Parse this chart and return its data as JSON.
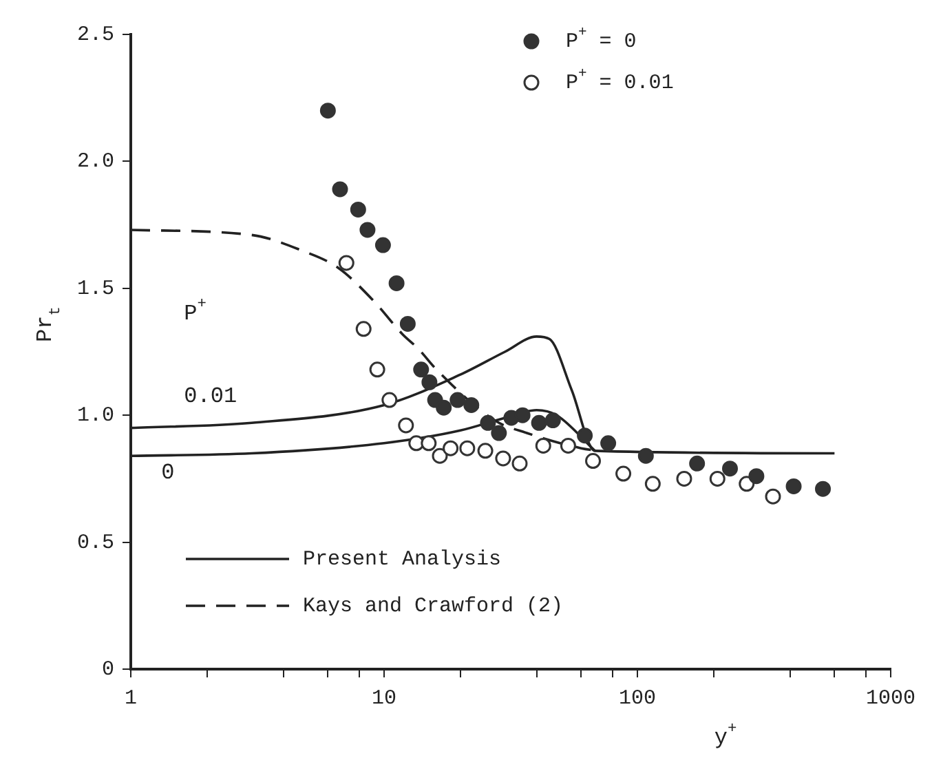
{
  "chart_data": {
    "type": "scatter",
    "xlabel": "y$^{+}$",
    "ylabel": "Pr$_{t}$",
    "log": "x",
    "legend": "top",
    "grid": false,
    "xlim": [
      1,
      1000
    ],
    "xticks": [
      1,
      {
        "value": 2,
        "label": null
      },
      {
        "value": 4,
        "label": null
      },
      {
        "value": 6,
        "label": null
      },
      {
        "value": 8,
        "label": null
      },
      10,
      {
        "value": 20,
        "label": null
      },
      {
        "value": 40,
        "label": null
      },
      {
        "value": 60,
        "label": null
      },
      {
        "value": 80,
        "label": null
      },
      100,
      {
        "value": 200,
        "label": null
      },
      {
        "value": 400,
        "label": null
      },
      {
        "value": 600,
        "label": null
      },
      {
        "value": 800,
        "label": null
      },
      1000
    ],
    "ylim": [
      0,
      2.5
    ],
    "yticks": [
      0,
      0.5,
      {
        "value": 1,
        "label": "1.0"
      },
      1.5,
      {
        "value": 2,
        "label": "2.0"
      },
      2.5
    ],
    "series": [
      {
        "name": "P$^{+}$ = 0",
        "marker": "circle",
        "color": "#333333",
        "x": [
          6.0,
          6.7,
          7.9,
          8.6,
          9.9,
          11.2,
          12.4,
          14.0,
          15.1,
          15.9,
          17.2,
          19.5,
          22.1,
          25.7,
          28.4,
          31.8,
          35.2,
          40.9,
          46.4,
          62,
          76.7,
          108,
          172,
          232,
          295,
          414,
          540
        ],
        "values": [
          2.2,
          1.89,
          1.81,
          1.73,
          1.67,
          1.52,
          1.36,
          1.18,
          1.13,
          1.06,
          1.03,
          1.06,
          1.04,
          0.97,
          0.93,
          0.99,
          1.0,
          0.97,
          0.98,
          0.92,
          0.89,
          0.84,
          0.81,
          0.79,
          0.76,
          0.72,
          0.71
        ]
      },
      {
        "name": "P$^{+}$ = 0.01",
        "marker": "circle",
        "color": "#ffffff",
        "x": [
          7.1,
          8.3,
          9.4,
          10.5,
          12.2,
          13.4,
          15.0,
          16.6,
          18.3,
          21.3,
          25.1,
          29.5,
          34.3,
          42.5,
          53.3,
          66.8,
          88,
          115,
          153,
          207,
          270,
          343
        ],
        "values": [
          1.6,
          1.34,
          1.18,
          1.06,
          0.96,
          0.89,
          0.89,
          0.84,
          0.87,
          0.87,
          0.86,
          0.83,
          0.81,
          0.88,
          0.88,
          0.82,
          0.77,
          0.73,
          0.75,
          0.75,
          0.73,
          0.68
        ]
      },
      {
        "name": "Present Analysis",
        "type": "line",
        "color": "#222222",
        "line_style": "solid",
        "x": [
          1,
          3,
          10,
          20,
          30,
          40,
          45,
          55,
          68,
          600
        ],
        "values": [
          0.95,
          0.97,
          1.04,
          1.16,
          1.25,
          1.31,
          1.3,
          1.1,
          0.86,
          0.85
        ]
      },
      {
        "type": "line",
        "color": "#222222",
        "line_style": "solid",
        "x": [
          1,
          3,
          10,
          20,
          30,
          40,
          48,
          68
        ],
        "values": [
          0.84,
          0.85,
          0.89,
          0.94,
          0.99,
          1.02,
          1.0,
          0.86
        ]
      },
      {
        "name": "Kays and Crawford (2)",
        "type": "line",
        "color": "#222222",
        "line_style": "dashed",
        "x": [
          1,
          3,
          4.7,
          6.6,
          9.1,
          11.8,
          13.7,
          16.1,
          27.3,
          36.6,
          60,
          70
        ],
        "values": [
          1.73,
          1.71,
          1.65,
          1.58,
          1.45,
          1.32,
          1.26,
          1.18,
          0.98,
          0.93,
          0.87,
          0.86
        ]
      }
    ],
    "annotations": [
      "P$^{+}$",
      "0.01",
      "0"
    ]
  }
}
